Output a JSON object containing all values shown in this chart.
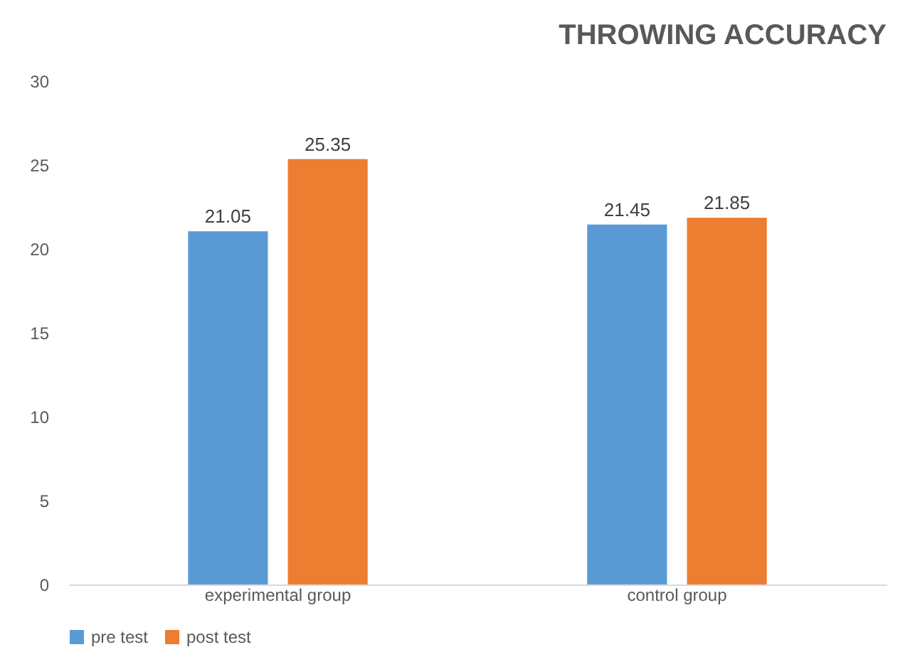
{
  "chart_data": {
    "type": "bar",
    "title": "THROWING ACCURACY",
    "categories": [
      "experimental group",
      "control group"
    ],
    "series": [
      {
        "name": "pre test",
        "color": "#5b9bd5",
        "values": [
          21.05,
          21.45
        ]
      },
      {
        "name": "post test",
        "color": "#ed7d31",
        "values": [
          25.35,
          21.85
        ]
      }
    ],
    "ylim": [
      0,
      30
    ],
    "yticks": [
      0,
      5,
      10,
      15,
      20,
      25,
      30
    ],
    "grid": false,
    "legend": "bottom",
    "data_labels": true
  }
}
